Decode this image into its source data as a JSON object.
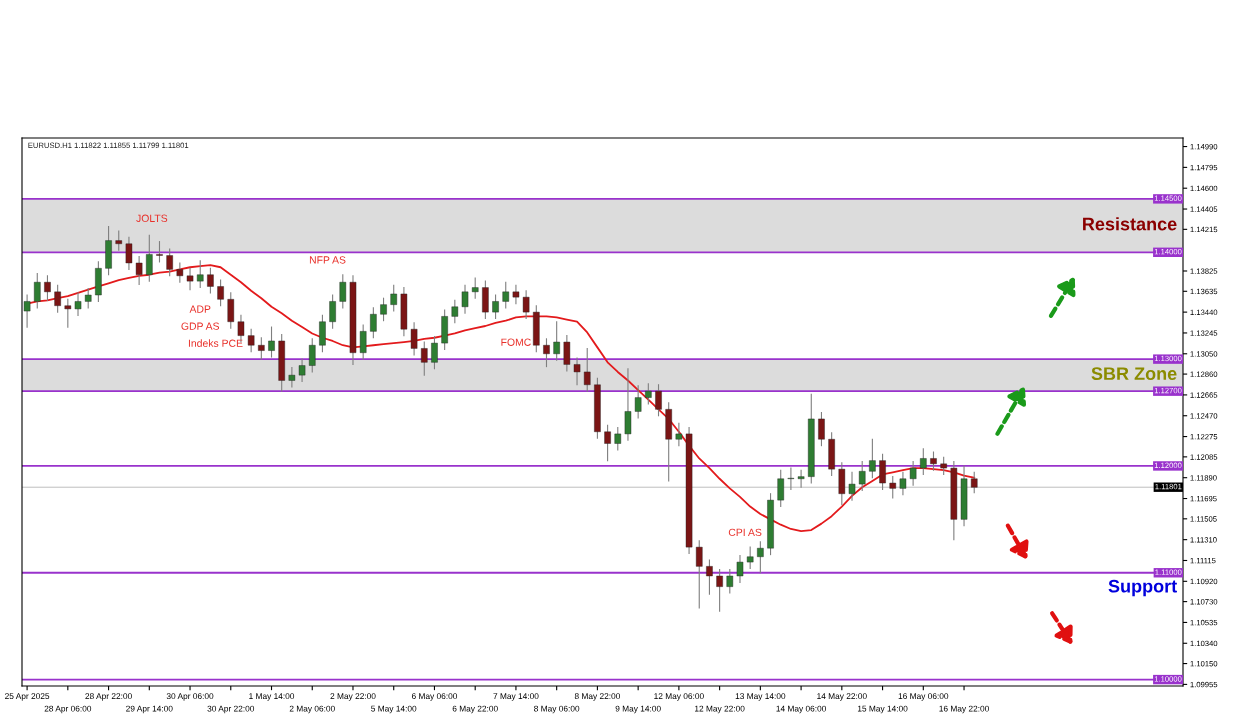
{
  "chart_data": {
    "type": "candlestick",
    "annotations": [
      "EURUSD.H1 1.11822 1.11855 1.11799 1.11801",
      "JOLTS",
      "ADP",
      "GDP AS",
      "Indeks PCE",
      "NFP AS",
      "FOMC",
      "CPI AS",
      "Support"
    ],
    "categories": [
      "25 Apr 2025",
      null,
      null,
      null,
      "28 Apr 06:00",
      null,
      null,
      null,
      "28 Apr 22:00",
      null,
      null,
      null,
      "29 Apr 14:00",
      null,
      null,
      null,
      "30 Apr 06:00",
      null,
      null,
      null,
      "30 Apr 22:00",
      null,
      null,
      null,
      "1 May 14:00",
      null,
      null,
      null,
      "2 May 06:00",
      null,
      null,
      null,
      "2 May 22:00",
      null,
      null,
      null,
      "5 May 14:00",
      null,
      null,
      null,
      "6 May 06:00",
      null,
      null,
      null,
      "6 May 22:00",
      null,
      null,
      null,
      "7 May 14:00",
      null,
      null,
      null,
      "8 May 06:00",
      null,
      null,
      null,
      "8 May 22:00",
      null,
      null,
      null,
      "9 May 14:00",
      null,
      null,
      null,
      "12 May 06:00",
      null,
      null,
      null,
      "12 May 22:00",
      null,
      null,
      null,
      "13 May 14:00",
      null,
      null,
      null,
      "14 May 06:00",
      null,
      null,
      null,
      "14 May 22:00",
      null,
      null,
      null,
      "15 May 14:00",
      null,
      null,
      null,
      "16 May 06:00",
      null,
      null,
      null,
      "16 May 22:00",
      null,
      null,
      null,
      null,
      null,
      null,
      null,
      null,
      null,
      null,
      null,
      null,
      null,
      null,
      null,
      null,
      null,
      null,
      null,
      null,
      null
    ],
    "ohlc": [
      [
        1.1345,
        1.136,
        1.133,
        1.1354
      ],
      [
        1.1354,
        1.138,
        1.1348,
        1.1372
      ],
      [
        1.1372,
        1.1378,
        1.1355,
        1.1363
      ],
      [
        1.1363,
        1.1369,
        1.1344,
        1.135
      ],
      [
        1.135,
        1.1356,
        1.133,
        1.1347
      ],
      [
        1.1347,
        1.1362,
        1.1341,
        1.1354
      ],
      [
        1.1354,
        1.1366,
        1.1348,
        1.136
      ],
      [
        1.136,
        1.1391,
        1.1354,
        1.1385
      ],
      [
        1.1385,
        1.1424,
        1.1379,
        1.1411
      ],
      [
        1.1411,
        1.142,
        1.1402,
        1.1408
      ],
      [
        1.1408,
        1.1414,
        1.1384,
        1.139
      ],
      [
        1.139,
        1.1396,
        1.137,
        1.1379
      ],
      [
        1.1379,
        1.1416,
        1.1373,
        1.1398
      ],
      [
        1.1398,
        1.141,
        1.1391,
        1.1397
      ],
      [
        1.1397,
        1.1403,
        1.1378,
        1.1384
      ],
      [
        1.1384,
        1.139,
        1.1372,
        1.1378
      ],
      [
        1.1378,
        1.1385,
        1.1365,
        1.1373
      ],
      [
        1.1373,
        1.1392,
        1.1367,
        1.1379
      ],
      [
        1.1379,
        1.1385,
        1.1362,
        1.1368
      ],
      [
        1.1368,
        1.1374,
        1.135,
        1.1356
      ],
      [
        1.1356,
        1.1362,
        1.1329,
        1.1335
      ],
      [
        1.1335,
        1.1341,
        1.1316,
        1.1322
      ],
      [
        1.1322,
        1.1328,
        1.1307,
        1.1313
      ],
      [
        1.1313,
        1.132,
        1.13,
        1.1308
      ],
      [
        1.1308,
        1.133,
        1.1302,
        1.1317
      ],
      [
        1.1317,
        1.1323,
        1.127,
        1.128
      ],
      [
        1.128,
        1.1292,
        1.1274,
        1.1285
      ],
      [
        1.1285,
        1.13,
        1.1279,
        1.1294
      ],
      [
        1.1294,
        1.1319,
        1.1288,
        1.1313
      ],
      [
        1.1313,
        1.1341,
        1.1307,
        1.1335
      ],
      [
        1.1335,
        1.136,
        1.1329,
        1.1354
      ],
      [
        1.1354,
        1.1379,
        1.1348,
        1.1372
      ],
      [
        1.1372,
        1.1378,
        1.1295,
        1.1306
      ],
      [
        1.1306,
        1.1332,
        1.13,
        1.1326
      ],
      [
        1.1326,
        1.1348,
        1.132,
        1.1342
      ],
      [
        1.1342,
        1.1357,
        1.1336,
        1.1351
      ],
      [
        1.1351,
        1.1369,
        1.1345,
        1.1361
      ],
      [
        1.1361,
        1.1367,
        1.1322,
        1.1328
      ],
      [
        1.1328,
        1.1334,
        1.1304,
        1.131
      ],
      [
        1.131,
        1.1316,
        1.1285,
        1.1297
      ],
      [
        1.1297,
        1.1321,
        1.1291,
        1.1315
      ],
      [
        1.1315,
        1.1346,
        1.1309,
        1.134
      ],
      [
        1.134,
        1.1355,
        1.1334,
        1.1349
      ],
      [
        1.1349,
        1.1369,
        1.1343,
        1.1363
      ],
      [
        1.1363,
        1.1376,
        1.1357,
        1.1367
      ],
      [
        1.1367,
        1.1373,
        1.1338,
        1.1344
      ],
      [
        1.1344,
        1.136,
        1.1338,
        1.1354
      ],
      [
        1.1354,
        1.1372,
        1.1348,
        1.1363
      ],
      [
        1.1363,
        1.1369,
        1.1352,
        1.1358
      ],
      [
        1.1358,
        1.1364,
        1.1338,
        1.1344
      ],
      [
        1.1344,
        1.135,
        1.1307,
        1.1313
      ],
      [
        1.1313,
        1.1319,
        1.1293,
        1.1305
      ],
      [
        1.1305,
        1.1335,
        1.1299,
        1.1316
      ],
      [
        1.1316,
        1.1322,
        1.1289,
        1.1295
      ],
      [
        1.1295,
        1.1301,
        1.1276,
        1.1288
      ],
      [
        1.1288,
        1.131,
        1.127,
        1.1276
      ],
      [
        1.1276,
        1.1282,
        1.1226,
        1.1232
      ],
      [
        1.1232,
        1.1238,
        1.1205,
        1.1221
      ],
      [
        1.1221,
        1.1236,
        1.1215,
        1.123
      ],
      [
        1.123,
        1.1291,
        1.1224,
        1.1251
      ],
      [
        1.1251,
        1.1275,
        1.1245,
        1.1264
      ],
      [
        1.1264,
        1.1277,
        1.1258,
        1.127
      ],
      [
        1.127,
        1.1276,
        1.1247,
        1.1253
      ],
      [
        1.1253,
        1.1259,
        1.1186,
        1.1225
      ],
      [
        1.1225,
        1.124,
        1.1219,
        1.123
      ],
      [
        1.123,
        1.1236,
        1.1118,
        1.1124
      ],
      [
        1.1124,
        1.113,
        1.1067,
        1.1106
      ],
      [
        1.1106,
        1.1112,
        1.108,
        1.1097
      ],
      [
        1.1097,
        1.1103,
        1.1064,
        1.1087
      ],
      [
        1.1087,
        1.1103,
        1.1081,
        1.1097
      ],
      [
        1.1097,
        1.1116,
        1.1091,
        1.111
      ],
      [
        1.111,
        1.1124,
        1.1104,
        1.1115
      ],
      [
        1.1115,
        1.1129,
        1.11,
        1.1123
      ],
      [
        1.1123,
        1.1174,
        1.1117,
        1.1168
      ],
      [
        1.1168,
        1.1196,
        1.1162,
        1.1188
      ],
      [
        1.1188,
        1.1198,
        1.1178,
        1.1188
      ],
      [
        1.1188,
        1.1196,
        1.118,
        1.119
      ],
      [
        1.119,
        1.1267,
        1.1184,
        1.1244
      ],
      [
        1.1244,
        1.125,
        1.1219,
        1.1225
      ],
      [
        1.1225,
        1.1231,
        1.1191,
        1.1197
      ],
      [
        1.1197,
        1.1203,
        1.1164,
        1.1174
      ],
      [
        1.1174,
        1.1194,
        1.1168,
        1.1183
      ],
      [
        1.1183,
        1.1204,
        1.1177,
        1.1195
      ],
      [
        1.1195,
        1.1225,
        1.1189,
        1.1205
      ],
      [
        1.1205,
        1.1211,
        1.1178,
        1.1184
      ],
      [
        1.1184,
        1.119,
        1.117,
        1.1179
      ],
      [
        1.1179,
        1.1194,
        1.1173,
        1.1188
      ],
      [
        1.1188,
        1.1204,
        1.1182,
        1.1198
      ],
      [
        1.1198,
        1.1216,
        1.1192,
        1.1207
      ],
      [
        1.1207,
        1.1213,
        1.1196,
        1.1202
      ],
      [
        1.1202,
        1.1208,
        1.1192,
        1.1198
      ],
      [
        1.1198,
        1.1204,
        1.1131,
        1.115
      ],
      [
        1.115,
        1.12,
        1.1144,
        1.1188
      ],
      [
        1.1188,
        1.1194,
        1.1175,
        1.118
      ],
      null,
      null,
      null,
      null,
      null,
      null,
      null,
      null,
      null,
      null,
      null,
      null,
      null,
      null,
      null,
      null,
      null,
      null,
      null,
      null
    ],
    "series": [
      {
        "type": "line",
        "color": "#e31a1c",
        "values": [
          1.1352,
          1.1354,
          1.1355,
          1.1357,
          1.1359,
          1.1362,
          1.1365,
          1.1368,
          1.1371,
          1.1374,
          1.1376,
          1.1378,
          1.1379,
          1.1381,
          1.1382,
          1.1384,
          1.1386,
          1.1387,
          1.1388,
          1.1386,
          1.1379,
          1.1372,
          1.1364,
          1.1357,
          1.1349,
          1.1343,
          1.1336,
          1.133,
          1.1324,
          1.132,
          1.1317,
          1.1313,
          1.1311,
          1.1312,
          1.1313,
          1.1314,
          1.1315,
          1.1316,
          1.1317,
          1.1319,
          1.132,
          1.1322,
          1.1324,
          1.1327,
          1.1329,
          1.1331,
          1.1334,
          1.1336,
          1.1339,
          1.134,
          1.134,
          1.134,
          1.1339,
          1.1337,
          1.1335,
          1.1325,
          1.1311,
          1.1297,
          1.1288,
          1.128,
          1.1271,
          1.1262,
          1.1253,
          1.1244,
          1.1232,
          1.1219,
          1.1207,
          1.1198,
          1.1188,
          1.1179,
          1.1171,
          1.1162,
          1.1155,
          1.115,
          1.1145,
          1.1141,
          1.1139,
          1.114,
          1.1146,
          1.1153,
          1.1162,
          1.1172,
          1.118,
          1.1186,
          1.1192,
          1.1194,
          1.1196,
          1.1198,
          1.1198,
          1.1197,
          1.1196,
          1.1194,
          1.1191,
          1.1189,
          null,
          null,
          null,
          null,
          null,
          null,
          null,
          null,
          null,
          null,
          null,
          null,
          null,
          null,
          null,
          null,
          null,
          null,
          null,
          null
        ]
      }
    ],
    "ylim": [
      1.0994,
      1.1507
    ],
    "yticks": [
      {
        "value": 1.09955,
        "label": "1.09955"
      },
      {
        "value": 1.1015,
        "label": "1.10150"
      },
      {
        "value": 1.1034,
        "label": "1.10340"
      },
      {
        "value": 1.10535,
        "label": "1.10535"
      },
      {
        "value": 1.1073,
        "label": "1.10730"
      },
      {
        "value": 1.1092,
        "label": "1.10920"
      },
      {
        "value": 1.11115,
        "label": "1.11115"
      },
      {
        "value": 1.1131,
        "label": "1.11310"
      },
      {
        "value": 1.11505,
        "label": "1.11505"
      },
      {
        "value": 1.11695,
        "label": "1.11695"
      },
      {
        "value": 1.1189,
        "label": "1.11890"
      },
      {
        "value": 1.12085,
        "label": "1.12085"
      },
      {
        "value": 1.12275,
        "label": "1.12275"
      },
      {
        "value": 1.1247,
        "label": "1.12470"
      },
      {
        "value": 1.12665,
        "label": "1.12665"
      },
      {
        "value": 1.1286,
        "label": "1.12860"
      },
      {
        "value": 1.1305,
        "label": "1.13050"
      },
      {
        "value": 1.13245,
        "label": "1.13245"
      },
      {
        "value": 1.1344,
        "label": "1.13440"
      },
      {
        "value": 1.13635,
        "label": "1.13635"
      },
      {
        "value": 1.13825,
        "label": "1.13825"
      },
      {
        "value": 1.14215,
        "label": "1.14215"
      },
      {
        "value": 1.14405,
        "label": "1.14405"
      },
      {
        "value": 1.146,
        "label": "1.14600"
      },
      {
        "value": 1.14795,
        "label": "1.14795"
      },
      {
        "value": 1.1499,
        "label": "1.14990"
      }
    ],
    "bands": [
      {
        "axis": "y",
        "from": 1.14,
        "to": 1.145,
        "label": "Resistance",
        "color": "#dcdcdc"
      },
      {
        "axis": "y",
        "from": 1.127,
        "to": 1.13,
        "label": "SBR Zone",
        "color": "#dcdcdc"
      }
    ],
    "ref_lines": [
      {
        "axis": "y",
        "value": 1.145,
        "label": "1.14500",
        "color": "#9932cc"
      },
      {
        "axis": "y",
        "value": 1.14,
        "label": "1.14000",
        "color": "#9932cc"
      },
      {
        "axis": "y",
        "value": 1.13,
        "label": "1.13000",
        "color": "#9932cc"
      },
      {
        "axis": "y",
        "value": 1.127,
        "label": "1.12700",
        "color": "#9932cc"
      },
      {
        "axis": "y",
        "value": 1.12,
        "label": "1.12000",
        "color": "#9932cc"
      },
      {
        "axis": "y",
        "value": 1.11801,
        "label": "1.11801",
        "color": "#b0b0b0"
      },
      {
        "axis": "y",
        "value": 1.11,
        "label": "1.11000",
        "color": "#9932cc"
      },
      {
        "axis": "y",
        "value": 1.1,
        "label": "1.10000",
        "color": "#9932cc"
      }
    ]
  }
}
